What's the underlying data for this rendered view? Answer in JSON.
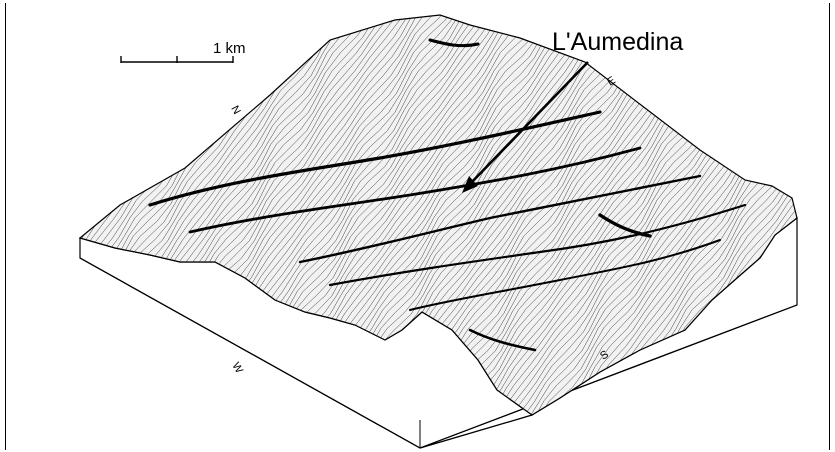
{
  "map": {
    "feature_label": "L'Aumedina",
    "scale_bar": {
      "label": "1 km",
      "divisions": 2
    },
    "compass": {
      "north": "N",
      "east": "E",
      "south": "S",
      "west": "W"
    },
    "style": {
      "ink_color": "#000000",
      "paper_color": "#ffffff"
    }
  }
}
